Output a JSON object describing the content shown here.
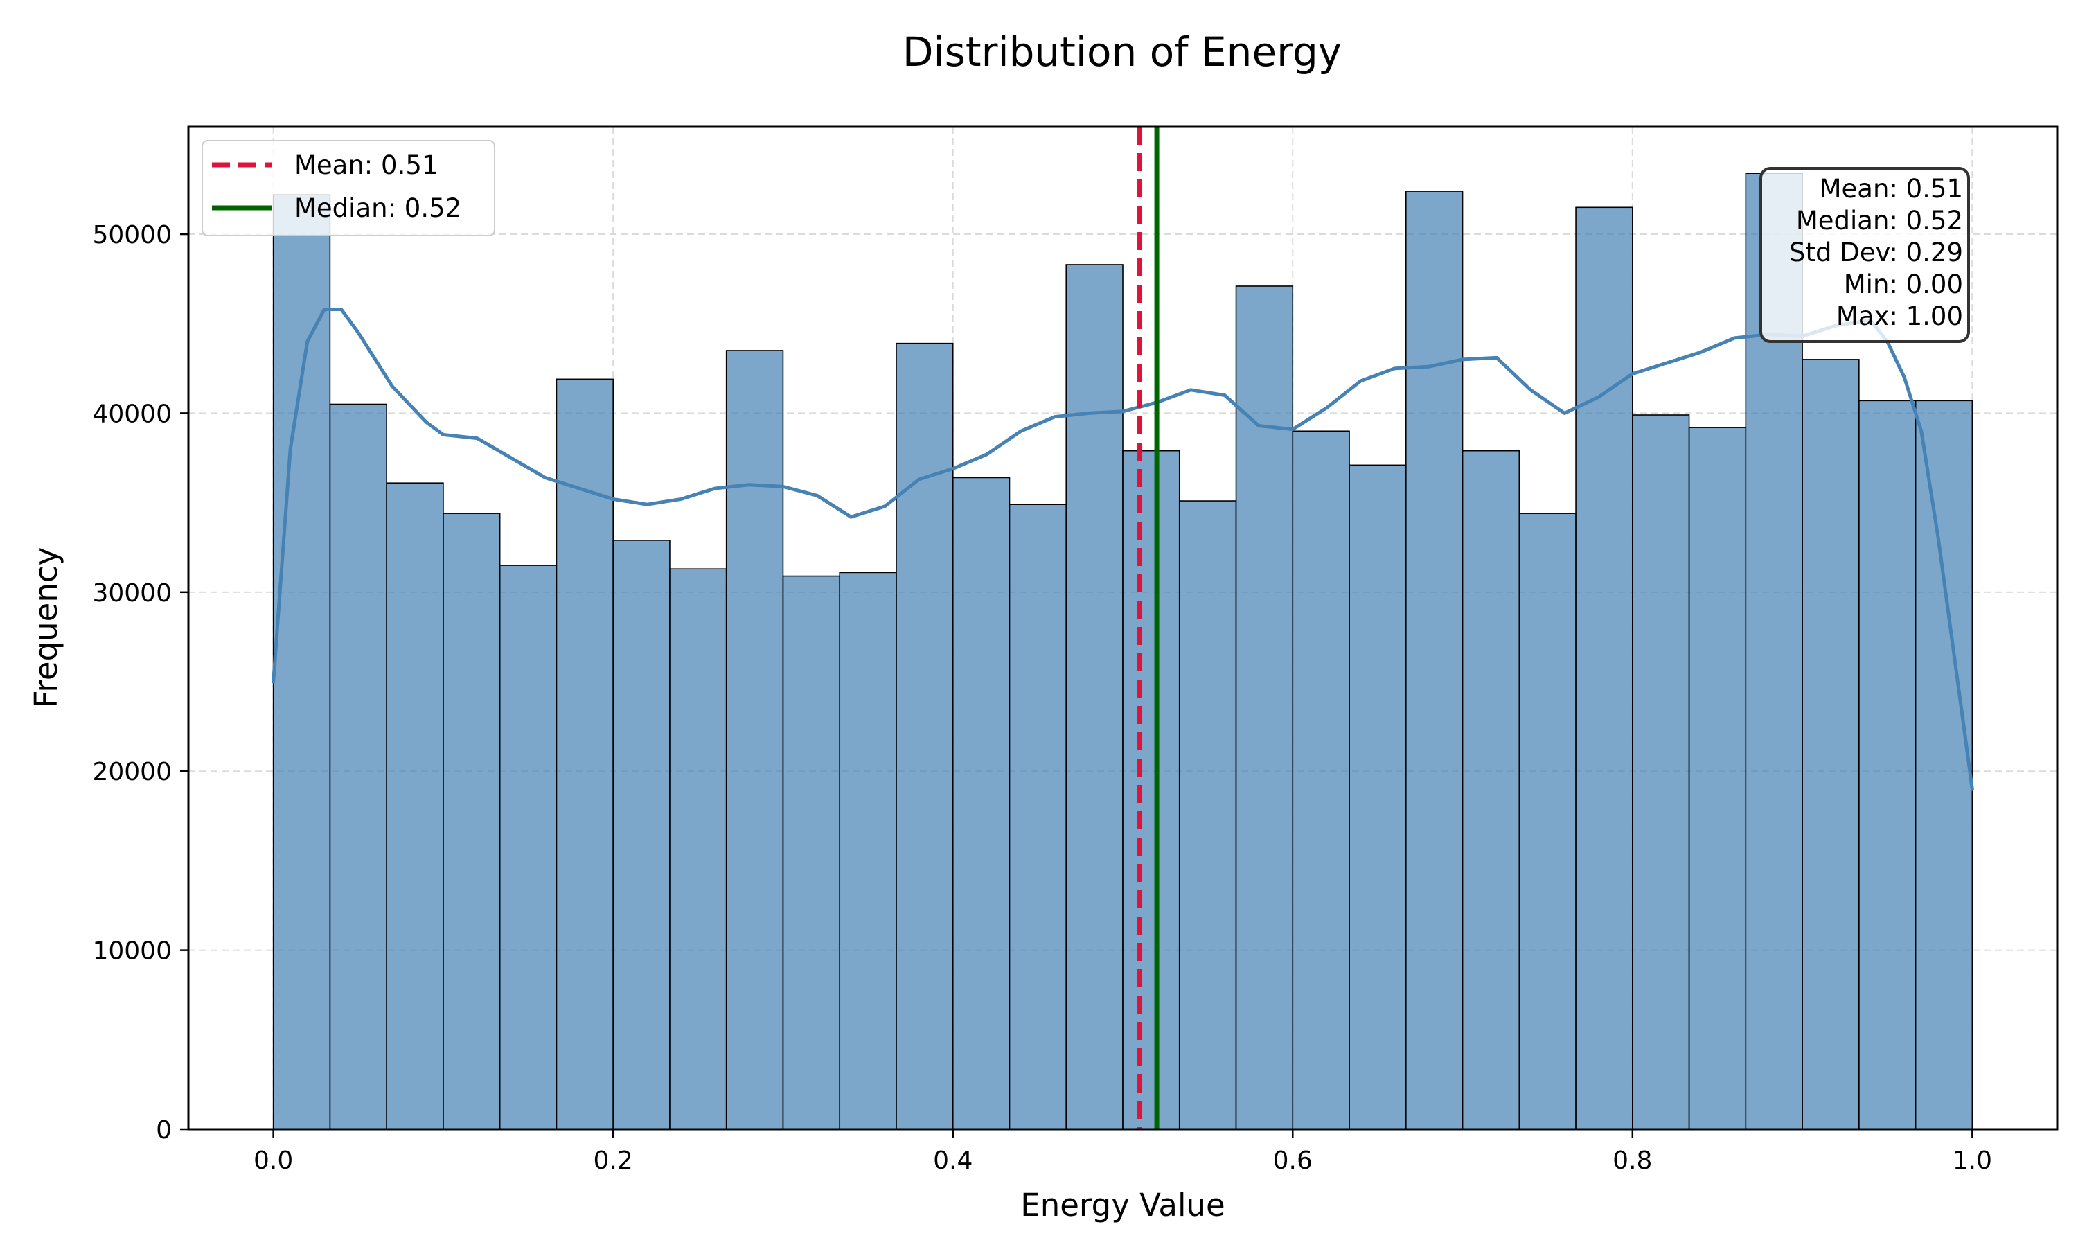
{
  "chart_data": {
    "type": "bar",
    "title": "Distribution of Energy",
    "xlabel": "Energy Value",
    "ylabel": "Frequency",
    "xlim": [
      -0.05,
      1.05
    ],
    "ylim": [
      0,
      56000
    ],
    "xticks": [
      0.0,
      0.2,
      0.4,
      0.6,
      0.8,
      1.0
    ],
    "xtick_labels": [
      "0.0",
      "0.2",
      "0.4",
      "0.6",
      "0.8",
      "1.0"
    ],
    "yticks": [
      0,
      10000,
      20000,
      30000,
      40000,
      50000
    ],
    "ytick_labels": [
      "0",
      "10000",
      "20000",
      "30000",
      "40000",
      "50000"
    ],
    "grid": true,
    "bins": {
      "start": 0.0,
      "end": 1.0,
      "count": 30,
      "values": [
        52200,
        40500,
        36100,
        34400,
        31500,
        41900,
        32900,
        31300,
        43500,
        30900,
        31100,
        43900,
        36400,
        34900,
        48300,
        37900,
        35100,
        47100,
        39000,
        37100,
        52400,
        37900,
        34400,
        51500,
        39900,
        39200,
        53400,
        43000,
        40700,
        40700
      ],
      "color": "#4682b4"
    },
    "kde": {
      "color": "#4682b4",
      "x": [
        0.0,
        0.01,
        0.02,
        0.03,
        0.04,
        0.05,
        0.07,
        0.09,
        0.1,
        0.12,
        0.14,
        0.16,
        0.18,
        0.2,
        0.22,
        0.24,
        0.26,
        0.28,
        0.3,
        0.32,
        0.34,
        0.36,
        0.38,
        0.4,
        0.42,
        0.44,
        0.46,
        0.48,
        0.5,
        0.52,
        0.54,
        0.56,
        0.58,
        0.6,
        0.62,
        0.64,
        0.66,
        0.68,
        0.7,
        0.72,
        0.74,
        0.76,
        0.78,
        0.8,
        0.82,
        0.84,
        0.86,
        0.88,
        0.9,
        0.92,
        0.94,
        0.95,
        0.96,
        0.97,
        0.98,
        0.99,
        1.0
      ],
      "y": [
        25000,
        38000,
        44000,
        45800,
        45800,
        44500,
        41500,
        39500,
        38800,
        38600,
        37500,
        36400,
        35800,
        35200,
        34900,
        35200,
        35800,
        36000,
        35900,
        35400,
        34200,
        34800,
        36300,
        36900,
        37700,
        39000,
        39800,
        40000,
        40100,
        40600,
        41300,
        41000,
        39300,
        39100,
        40300,
        41800,
        42500,
        42600,
        43000,
        43100,
        41300,
        40000,
        40900,
        42200,
        42800,
        43400,
        44200,
        44400,
        44300,
        44900,
        45200,
        44000,
        42000,
        39000,
        33000,
        26000,
        19000
      ]
    },
    "reference_lines": [
      {
        "name": "Mean: 0.51",
        "x": 0.51,
        "color": "#dc143c",
        "style": "dashed"
      },
      {
        "name": "Median: 0.52",
        "x": 0.52,
        "color": "#006400",
        "style": "solid"
      }
    ],
    "legend_position": "top-left",
    "stats_box": {
      "position": "top-right",
      "lines": [
        "Mean: 0.51",
        "Median: 0.52",
        "Std Dev: 0.29",
        "Min: 0.00",
        "Max: 1.00"
      ]
    }
  }
}
